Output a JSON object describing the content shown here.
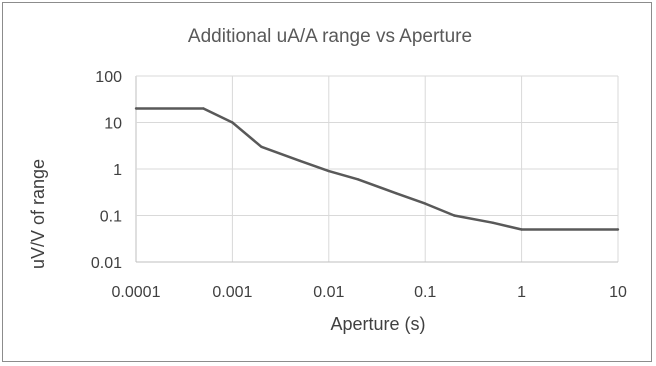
{
  "chart_data": {
    "type": "line",
    "title": "Additional uA/A range vs Aperture",
    "xlabel": "Aperture (s)",
    "ylabel": "uV/V of range",
    "x_scale": "log",
    "y_scale": "log",
    "xlim": [
      0.0001,
      10
    ],
    "ylim": [
      0.01,
      100
    ],
    "x_ticks": [
      "0.0001",
      "0.001",
      "0.01",
      "0.1",
      "1",
      "10"
    ],
    "y_ticks": [
      "0.01",
      "0.1",
      "1",
      "10",
      "100"
    ],
    "grid": true,
    "legend": "none",
    "series": [
      {
        "color": "#595959",
        "points": [
          [
            0.0001,
            20
          ],
          [
            0.0005,
            20
          ],
          [
            0.001,
            10
          ],
          [
            0.002,
            3
          ],
          [
            0.005,
            1.5
          ],
          [
            0.01,
            0.9
          ],
          [
            0.02,
            0.6
          ],
          [
            0.05,
            0.3
          ],
          [
            0.1,
            0.18
          ],
          [
            0.2,
            0.1
          ],
          [
            0.5,
            0.07
          ],
          [
            1,
            0.05
          ],
          [
            10,
            0.05
          ]
        ]
      }
    ]
  }
}
